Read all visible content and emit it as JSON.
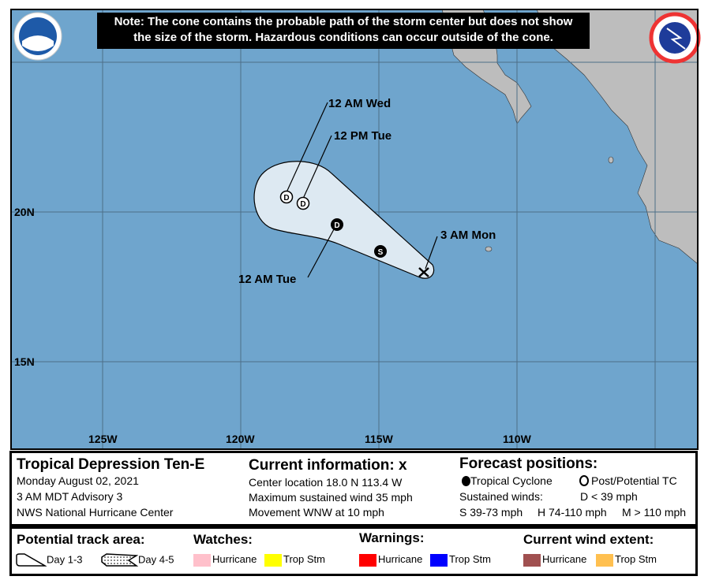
{
  "note": {
    "line1": "Note: The cone contains the probable path of the storm center but does not show",
    "line2": "the size of the storm. Hazardous conditions can occur outside of the cone."
  },
  "logos": {
    "left": "NOAA",
    "right": "NATIONAL WEATHER SERVICE"
  },
  "colors": {
    "ocean": "#6fa5cd",
    "land": "#bdbdbd",
    "cone": "#dde9f2",
    "grid": "#4d6f88"
  },
  "map": {
    "lon_labels": [
      "125W",
      "120W",
      "115W",
      "110W"
    ],
    "lat_labels": [
      "20N",
      "15N"
    ],
    "track_labels": {
      "wed": "12 AM Wed",
      "pmtue": "12 PM Tue",
      "amtue": "12 AM Tue",
      "mon": "3 AM Mon"
    },
    "markers": [
      {
        "type": "current",
        "symbol": "X",
        "lat": 18.0,
        "lon": -113.4
      },
      {
        "type": "tropical-cyclone",
        "symbol": "S",
        "lat": 18.7,
        "lon": -114.9
      },
      {
        "type": "tropical-cyclone",
        "symbol": "D",
        "lat": 19.6,
        "lon": -116.4
      },
      {
        "type": "post-potential",
        "symbol": "D",
        "lat": 20.3,
        "lon": -117.6
      },
      {
        "type": "post-potential",
        "symbol": "D",
        "lat": 20.5,
        "lon": -118.2
      }
    ]
  },
  "info": {
    "title": "Tropical Depression Ten-E",
    "date": "Monday August 02, 2021",
    "advisory": "3 AM MDT Advisory 3",
    "center": "NWS National Hurricane Center",
    "current_heading": "Current information:",
    "current_symbol": "x",
    "location": "Center location 18.0 N 113.4 W",
    "wind": "Maximum sustained wind 35 mph",
    "movement": "Movement WNW at 10 mph",
    "forecast_heading": "Forecast positions:",
    "tc": "Tropical Cyclone",
    "ptc": "Post/Potential TC",
    "sustained": "Sustained winds:",
    "d": "D < 39 mph",
    "s": "S 39-73 mph",
    "h": "H 74-110 mph",
    "m": "M > 110 mph"
  },
  "legend": {
    "track_heading": "Potential track area:",
    "day13": "Day 1-3",
    "day45": "Day 4-5",
    "watches": "Watches:",
    "warnings": "Warnings:",
    "wind_extent": "Current wind extent:",
    "hurricane": "Hurricane",
    "tropstm": "Trop Stm",
    "watch_colors": {
      "hurricane": "#ffc0cb",
      "tropstm": "#ffff00"
    },
    "warning_colors": {
      "hurricane": "#ff0000",
      "tropstm": "#0000ff"
    },
    "extent_colors": {
      "hurricane": "#a05050",
      "tropstm": "#ffc050"
    }
  }
}
